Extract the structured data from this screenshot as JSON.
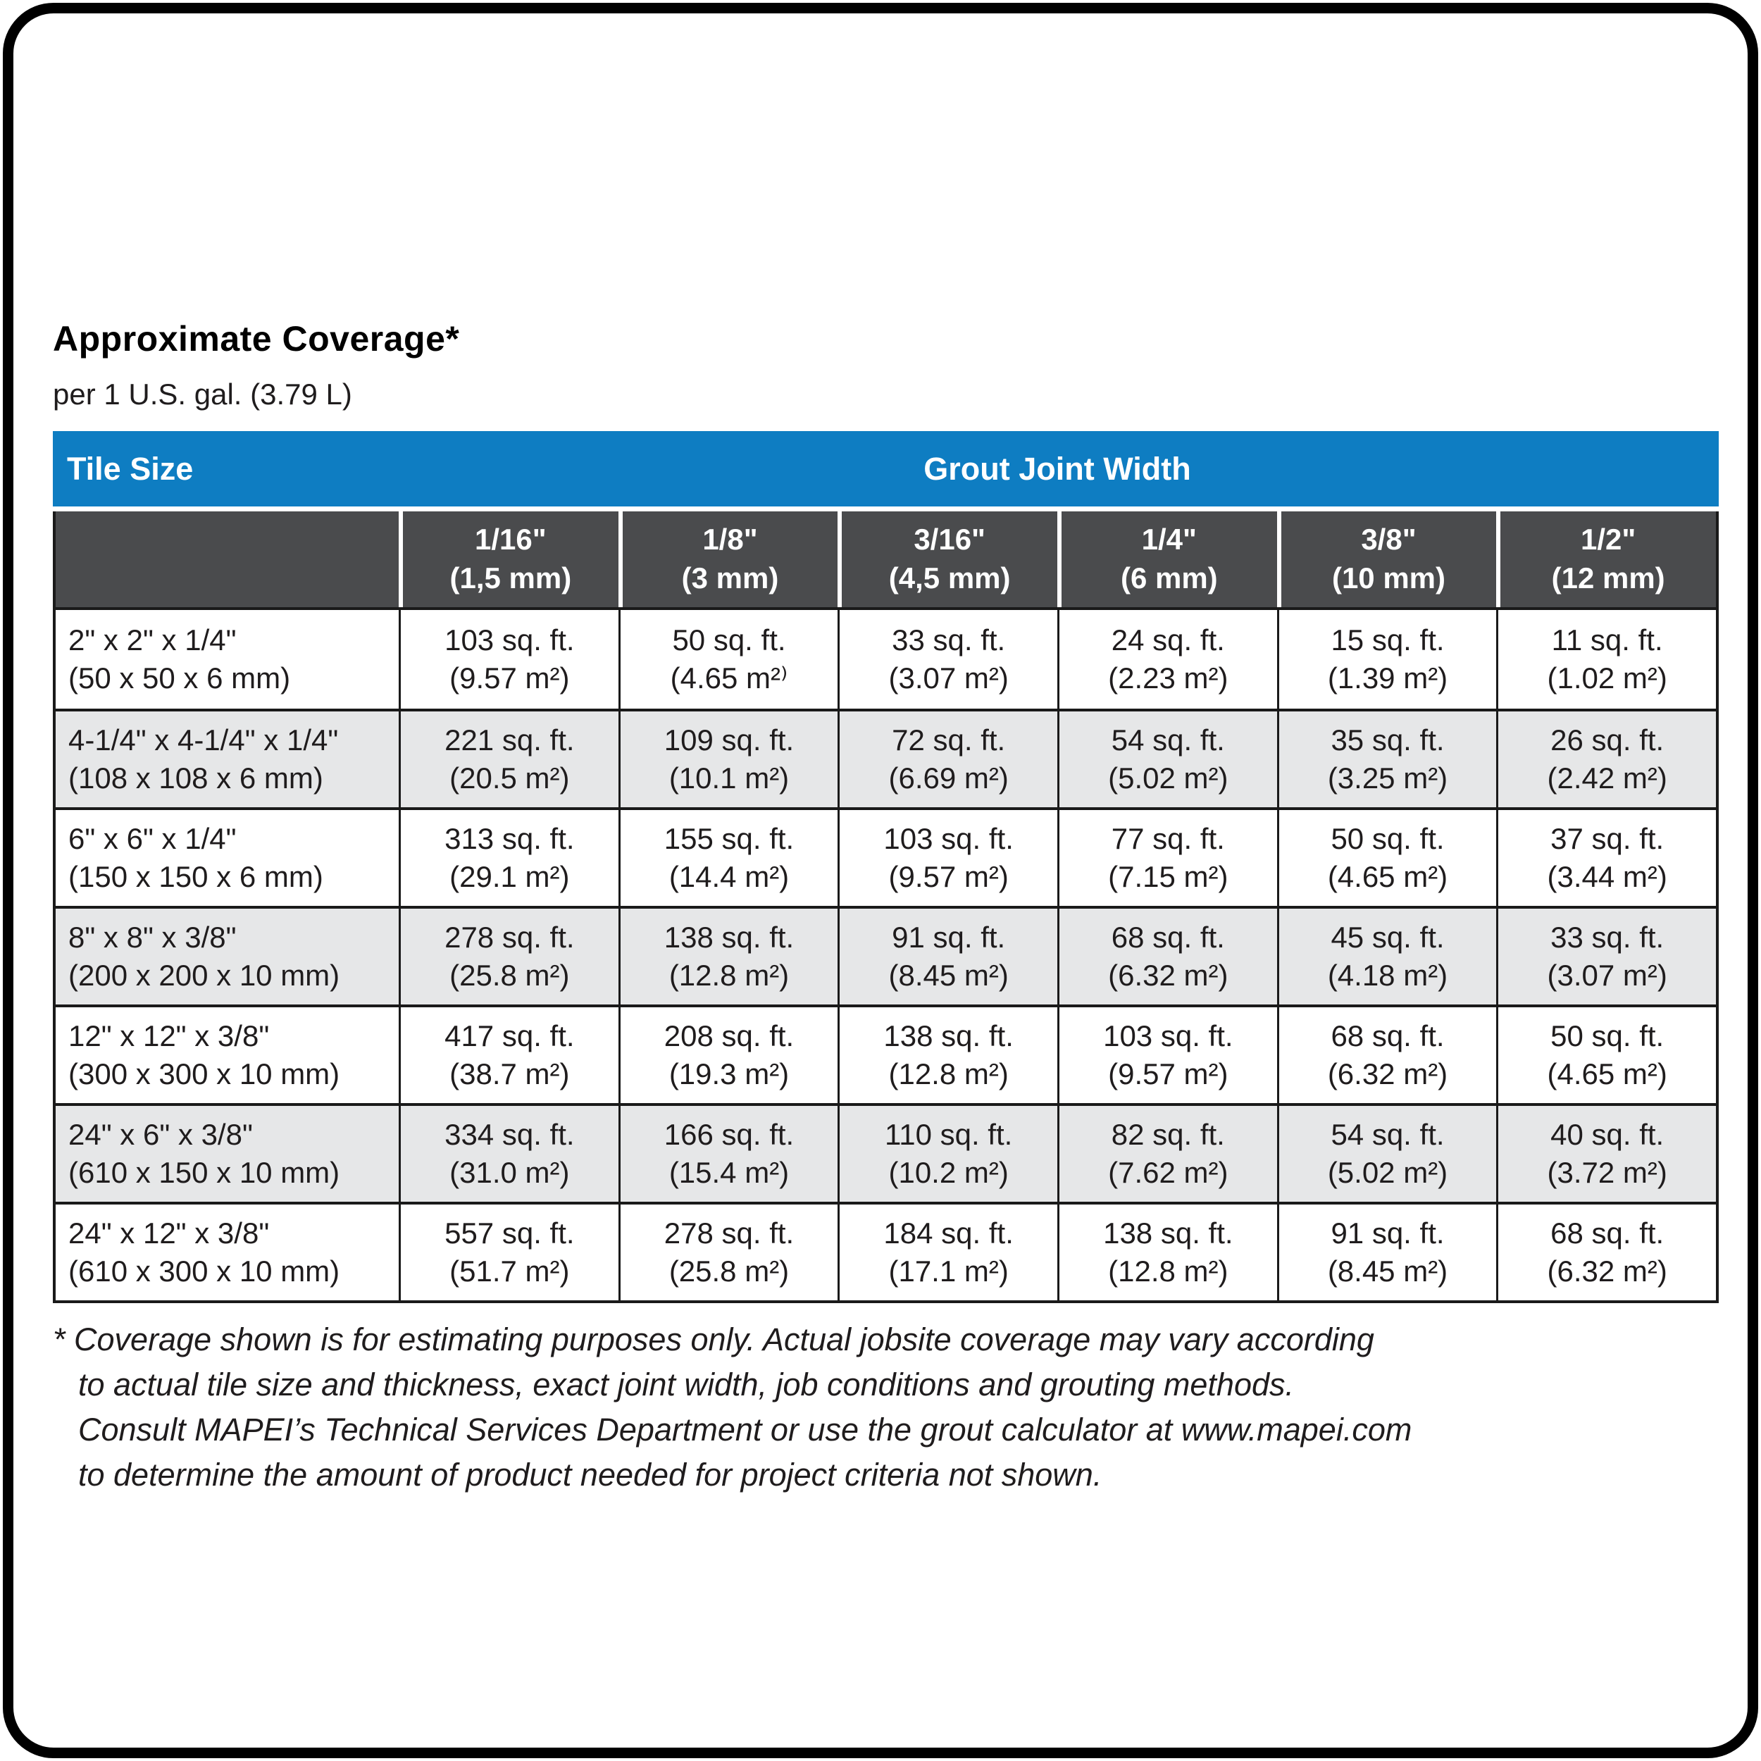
{
  "section": {
    "title": "Approximate Coverage*",
    "subtitle": "per 1 U.S. gal. (3.79 L)"
  },
  "table": {
    "tile_size_header": "Tile Size",
    "joint_width_header": "Grout Joint Width",
    "joint_widths": [
      {
        "imperial": "1/16\"",
        "metric": "(1,5 mm)"
      },
      {
        "imperial": "1/8\"",
        "metric": "(3 mm)"
      },
      {
        "imperial": "3/16\"",
        "metric": "(4,5 mm)"
      },
      {
        "imperial": "1/4\"",
        "metric": "(6 mm)"
      },
      {
        "imperial": "3/8\"",
        "metric": "(10 mm)"
      },
      {
        "imperial": "1/2\"",
        "metric": "(12 mm)"
      }
    ],
    "rows": [
      {
        "tile_size": "2\" x 2\" x 1/4\"",
        "tile_size_metric": "(50 x 50 x 6 mm)",
        "coverage": [
          {
            "sqft": "103 sq. ft.",
            "m2": "(9.57 m²)"
          },
          {
            "sqft": "50 sq. ft.",
            "m2": "(4.65 m²⁾"
          },
          {
            "sqft": "33 sq. ft.",
            "m2": "(3.07 m²)"
          },
          {
            "sqft": "24 sq. ft.",
            "m2": "(2.23 m²)"
          },
          {
            "sqft": "15 sq. ft.",
            "m2": "(1.39 m²)"
          },
          {
            "sqft": "11 sq. ft.",
            "m2": "(1.02 m²)"
          }
        ]
      },
      {
        "tile_size": "4-1/4\" x 4-1/4\" x 1/4\"",
        "tile_size_metric": "(108 x 108 x 6 mm)",
        "coverage": [
          {
            "sqft": "221 sq. ft.",
            "m2": "(20.5 m²)"
          },
          {
            "sqft": "109 sq. ft.",
            "m2": "(10.1 m²)"
          },
          {
            "sqft": "72 sq. ft.",
            "m2": "(6.69 m²)"
          },
          {
            "sqft": "54 sq. ft.",
            "m2": "(5.02 m²)"
          },
          {
            "sqft": "35 sq. ft.",
            "m2": "(3.25 m²)"
          },
          {
            "sqft": "26 sq. ft.",
            "m2": "(2.42 m²)"
          }
        ]
      },
      {
        "tile_size": "6\" x 6\" x 1/4\"",
        "tile_size_metric": "(150 x 150 x 6 mm)",
        "coverage": [
          {
            "sqft": "313 sq. ft.",
            "m2": "(29.1 m²)"
          },
          {
            "sqft": "155 sq. ft.",
            "m2": "(14.4 m²)"
          },
          {
            "sqft": "103 sq. ft.",
            "m2": "(9.57 m²)"
          },
          {
            "sqft": "77 sq. ft.",
            "m2": "(7.15 m²)"
          },
          {
            "sqft": "50 sq. ft.",
            "m2": "(4.65 m²)"
          },
          {
            "sqft": "37 sq. ft.",
            "m2": "(3.44 m²)"
          }
        ]
      },
      {
        "tile_size": "8\" x 8\" x 3/8\"",
        "tile_size_metric": "(200 x 200 x 10 mm)",
        "coverage": [
          {
            "sqft": "278 sq. ft.",
            "m2": "(25.8 m²)"
          },
          {
            "sqft": "138 sq. ft.",
            "m2": "(12.8 m²)"
          },
          {
            "sqft": "91 sq. ft.",
            "m2": "(8.45 m²)"
          },
          {
            "sqft": "68 sq. ft.",
            "m2": "(6.32 m²)"
          },
          {
            "sqft": "45 sq. ft.",
            "m2": "(4.18 m²)"
          },
          {
            "sqft": "33 sq. ft.",
            "m2": "(3.07 m²)"
          }
        ]
      },
      {
        "tile_size": "12\" x 12\" x 3/8\"",
        "tile_size_metric": "(300 x 300 x 10 mm)",
        "coverage": [
          {
            "sqft": "417 sq. ft.",
            "m2": "(38.7 m²)"
          },
          {
            "sqft": "208 sq. ft.",
            "m2": "(19.3 m²)"
          },
          {
            "sqft": "138 sq. ft.",
            "m2": "(12.8 m²)"
          },
          {
            "sqft": "103 sq. ft.",
            "m2": "(9.57 m²)"
          },
          {
            "sqft": "68 sq. ft.",
            "m2": "(6.32 m²)"
          },
          {
            "sqft": "50 sq. ft.",
            "m2": "(4.65 m²)"
          }
        ]
      },
      {
        "tile_size": "24\" x 6\" x 3/8\"",
        "tile_size_metric": "(610 x 150 x 10 mm)",
        "coverage": [
          {
            "sqft": "334 sq. ft.",
            "m2": "(31.0 m²)"
          },
          {
            "sqft": "166 sq. ft.",
            "m2": "(15.4 m²)"
          },
          {
            "sqft": "110 sq. ft.",
            "m2": "(10.2 m²)"
          },
          {
            "sqft": "82 sq. ft.",
            "m2": "(7.62 m²)"
          },
          {
            "sqft": "54 sq. ft.",
            "m2": "(5.02 m²)"
          },
          {
            "sqft": "40 sq. ft.",
            "m2": "(3.72 m²)"
          }
        ]
      },
      {
        "tile_size": "24\" x 12\" x 3/8\"",
        "tile_size_metric": "(610 x 300 x 10 mm)",
        "coverage": [
          {
            "sqft": "557 sq. ft.",
            "m2": "(51.7 m²)"
          },
          {
            "sqft": "278 sq. ft.",
            "m2": "(25.8 m²)"
          },
          {
            "sqft": "184 sq. ft.",
            "m2": "(17.1 m²)"
          },
          {
            "sqft": "138 sq. ft.",
            "m2": "(12.8 m²)"
          },
          {
            "sqft": "91 sq. ft.",
            "m2": "(8.45 m²)"
          },
          {
            "sqft": "68 sq. ft.",
            "m2": "(6.32 m²)"
          }
        ]
      }
    ]
  },
  "footnote": {
    "lines": [
      "* Coverage shown is for estimating purposes only. Actual jobsite coverage may vary according",
      "to actual tile size and thickness, exact joint width, job conditions and grouting methods.",
      "Consult MAPEI’s Technical Services Department or use the grout calculator at www.mapei.com",
      "to determine the amount of product needed for project criteria not shown."
    ]
  },
  "colors": {
    "header_blue": "#0e7dc2",
    "subheader_gray": "#4a4b4d",
    "row_alt": "#e6e7e8",
    "line": "#1a1a1a"
  }
}
